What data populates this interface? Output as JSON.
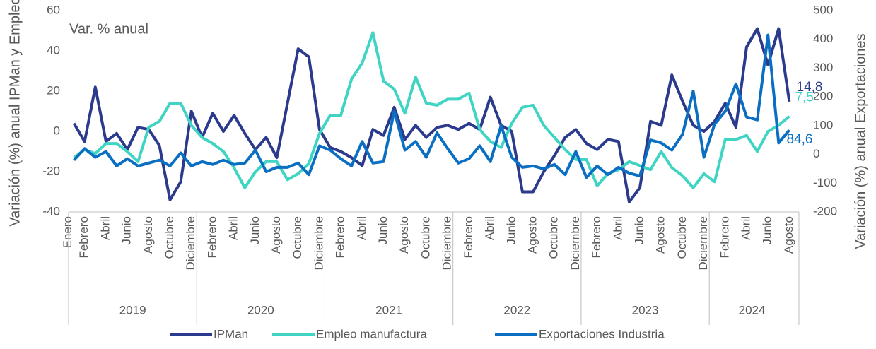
{
  "chart_data": {
    "type": "line",
    "annotation": "Var. % anual",
    "y_label": "Variación (%) anual IPMan y Empleo",
    "y2_label": "Variación (%) anual Exportaciones",
    "categories": [
      "Enero",
      "Febrero",
      null,
      "Abril",
      null,
      "Junio",
      null,
      "Agosto",
      null,
      "Octubre",
      null,
      "Diciembre",
      null,
      "Febrero",
      null,
      "Abril",
      null,
      "Junio",
      null,
      "Agosto",
      null,
      "Octubre",
      null,
      "Diciembre",
      null,
      "Febrero",
      null,
      "Abril",
      null,
      "Junio",
      null,
      "Agosto",
      null,
      "Octubre",
      null,
      "Diciembre",
      null,
      "Febrero",
      null,
      "Abril",
      null,
      "Junio",
      null,
      "Agosto",
      null,
      "Octubre",
      null,
      "Diciembre",
      null,
      "Febrero",
      null,
      "Abril",
      null,
      "Junio",
      null,
      "Agosto",
      null,
      "Octubre",
      null,
      "Diciembre",
      null,
      "Febrero",
      null,
      "Abril",
      null,
      "Junio",
      null,
      "Agosto"
    ],
    "x_groups": [
      {
        "label": "2019",
        "span": 12
      },
      {
        "label": "2020",
        "span": 12
      },
      {
        "label": "2021",
        "span": 12
      },
      {
        "label": "2022",
        "span": 12
      },
      {
        "label": "2023",
        "span": 12
      },
      {
        "label": "2024",
        "span": 8
      }
    ],
    "ylim": [
      -40,
      60
    ],
    "yticks": [
      -40,
      -20,
      0,
      20,
      40,
      60
    ],
    "y2lim": [
      -200,
      500
    ],
    "y2ticks": [
      -200,
      -100,
      0,
      100,
      200,
      300,
      400,
      500
    ],
    "grid": false,
    "legend": "bottom",
    "series": [
      {
        "name": "IPMan",
        "color": "#2b3a8c",
        "values": [
          4,
          -5,
          22,
          -5,
          -1,
          -9,
          2,
          1,
          -7,
          -34,
          -25,
          10,
          -3,
          9,
          0,
          8,
          -1,
          -9,
          -3,
          -13,
          14,
          41,
          37,
          1,
          -8,
          -10,
          -13,
          -17,
          1,
          -2,
          12,
          -4,
          3,
          -3,
          2,
          3,
          1,
          4,
          1,
          17,
          3,
          0,
          -30,
          -30,
          -20,
          -12,
          -3,
          1,
          -6,
          -9,
          -4,
          -5,
          -35,
          -28,
          5,
          3,
          28,
          15,
          3,
          0,
          5,
          14,
          2,
          42,
          51,
          33,
          51,
          14.8
        ],
        "value_labels": [
          null,
          null,
          null,
          null,
          null,
          null,
          null,
          null,
          null,
          null,
          null,
          null,
          null,
          null,
          null,
          null,
          null,
          null,
          null,
          null,
          null,
          null,
          null,
          null,
          null,
          null,
          null,
          null,
          null,
          null,
          null,
          null,
          null,
          null,
          null,
          null,
          null,
          null,
          null,
          null,
          null,
          null,
          null,
          null,
          null,
          null,
          null,
          null,
          null,
          null,
          null,
          null,
          null,
          null,
          null,
          null,
          null,
          null,
          null,
          null,
          null,
          null,
          null,
          null,
          null,
          null,
          null,
          "14,8"
        ]
      },
      {
        "name": "Empleo manufactura",
        "color": "#40d4c4",
        "values": [
          -13,
          -9,
          -11,
          -6,
          -6,
          -10,
          -15,
          2,
          5,
          14,
          14,
          3,
          -3,
          -6,
          -10,
          -18,
          -28,
          -20,
          -15,
          -15,
          -24,
          -21,
          -16,
          -1,
          8,
          8,
          26,
          34,
          49,
          25,
          21,
          9,
          27,
          14,
          13,
          16,
          16,
          19,
          1,
          -5,
          -8,
          4,
          12,
          13,
          3,
          -3,
          -9,
          -14,
          -14,
          -27,
          -21,
          -19,
          -15,
          -17,
          -19,
          -10,
          -18,
          -22,
          -28,
          -21,
          -25,
          -4,
          -4,
          -2,
          -10,
          0,
          3,
          7.5
        ],
        "value_labels": [
          null,
          null,
          null,
          null,
          null,
          null,
          null,
          null,
          null,
          null,
          null,
          null,
          null,
          null,
          null,
          null,
          null,
          null,
          null,
          null,
          null,
          null,
          null,
          null,
          null,
          null,
          null,
          null,
          null,
          null,
          null,
          null,
          null,
          null,
          null,
          null,
          null,
          null,
          null,
          null,
          null,
          null,
          null,
          null,
          null,
          null,
          null,
          null,
          null,
          null,
          null,
          null,
          null,
          null,
          null,
          null,
          null,
          null,
          null,
          null,
          null,
          null,
          null,
          null,
          null,
          null,
          null,
          "7,5"
        ]
      },
      {
        "name": "Exportaciones Industria",
        "color": "#0a6fc2",
        "axis": "y2",
        "values": [
          -20,
          20,
          -10,
          10,
          -40,
          -15,
          -40,
          -30,
          -20,
          -40,
          5,
          -40,
          -25,
          -35,
          -20,
          -35,
          -30,
          15,
          -60,
          -45,
          -45,
          -30,
          -70,
          30,
          15,
          -15,
          -40,
          45,
          -30,
          -25,
          150,
          15,
          45,
          -10,
          75,
          20,
          -30,
          -15,
          30,
          -25,
          100,
          -10,
          -45,
          -40,
          -50,
          -35,
          -70,
          10,
          -80,
          -40,
          -70,
          -45,
          -65,
          -75,
          50,
          40,
          15,
          70,
          220,
          -10,
          105,
          150,
          245,
          130,
          120,
          415,
          40,
          84.6
        ],
        "value_labels": [
          null,
          null,
          null,
          null,
          null,
          null,
          null,
          null,
          null,
          null,
          null,
          null,
          null,
          null,
          null,
          null,
          null,
          null,
          null,
          null,
          null,
          null,
          null,
          null,
          null,
          null,
          null,
          null,
          null,
          null,
          null,
          null,
          null,
          null,
          null,
          null,
          null,
          null,
          null,
          null,
          null,
          null,
          null,
          null,
          null,
          null,
          null,
          null,
          null,
          null,
          null,
          null,
          null,
          null,
          null,
          null,
          null,
          null,
          null,
          null,
          null,
          null,
          null,
          null,
          null,
          null,
          null,
          "84,6"
        ]
      }
    ]
  }
}
